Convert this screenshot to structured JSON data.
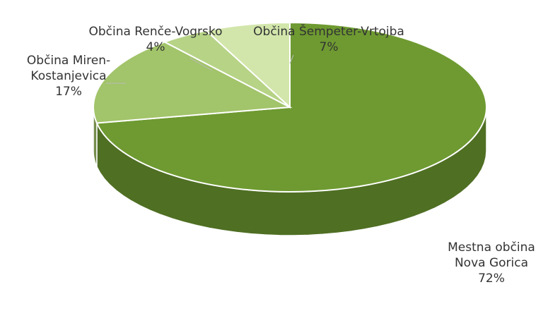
{
  "chart_data": {
    "type": "pie3d",
    "categories": [
      "Mestna občina Nova Gorica",
      "Občina Miren-Kostanjevica",
      "Občina Renče-Vogrsko",
      "Občina Šempeter-Vrtojba"
    ],
    "values": [
      72,
      17,
      4,
      7
    ],
    "value_labels": [
      "72%",
      "17%",
      "4%",
      "7%"
    ],
    "colors": [
      "#6e9a31",
      "#a2c46a",
      "#b6d386",
      "#d2e6ab"
    ]
  }
}
